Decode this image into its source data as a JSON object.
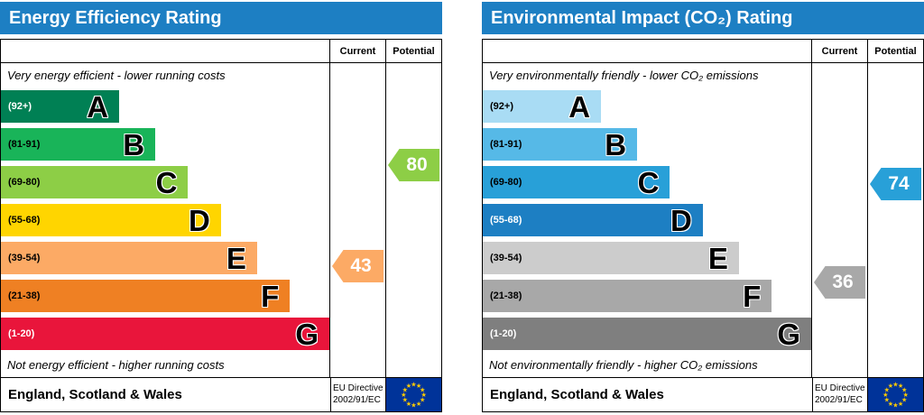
{
  "colors": {
    "header_bg": "#1d7fc3",
    "header_text": "#ffffff",
    "flag_bg": "#003399",
    "flag_star": "#ffcc00"
  },
  "chart_data": [
    {
      "type": "bar",
      "variant": "epc-rating",
      "title": "Energy Efficiency Rating",
      "columns": {
        "current": "Current",
        "potential": "Potential"
      },
      "top_caption": "Very energy efficient - lower running costs",
      "bottom_caption": "Not energy efficient - higher running costs",
      "bands": [
        {
          "letter": "A",
          "range": "(92+)",
          "lo": 92,
          "hi": 100,
          "color": "#008054",
          "range_color": "#ffffff",
          "width_pct": 36
        },
        {
          "letter": "B",
          "range": "(81-91)",
          "lo": 81,
          "hi": 91,
          "color": "#19b459",
          "range_color": "#000000",
          "width_pct": 47
        },
        {
          "letter": "C",
          "range": "(69-80)",
          "lo": 69,
          "hi": 80,
          "color": "#8dce46",
          "range_color": "#000000",
          "width_pct": 57
        },
        {
          "letter": "D",
          "range": "(55-68)",
          "lo": 55,
          "hi": 68,
          "color": "#ffd500",
          "range_color": "#000000",
          "width_pct": 67
        },
        {
          "letter": "E",
          "range": "(39-54)",
          "lo": 39,
          "hi": 54,
          "color": "#fcaa65",
          "range_color": "#000000",
          "width_pct": 78
        },
        {
          "letter": "F",
          "range": "(21-38)",
          "lo": 21,
          "hi": 38,
          "color": "#ef8023",
          "range_color": "#000000",
          "width_pct": 88
        },
        {
          "letter": "G",
          "range": "(1-20)",
          "lo": 1,
          "hi": 20,
          "color": "#e9153b",
          "range_color": "#ffffff",
          "width_pct": 100
        }
      ],
      "current": {
        "value": 43,
        "band": "E",
        "color": "#fcaa65"
      },
      "potential": {
        "value": 80,
        "band": "C",
        "color": "#8dce46"
      },
      "footer": {
        "region": "England, Scotland & Wales",
        "directive_line1": "EU Directive",
        "directive_line2": "2002/91/EC"
      }
    },
    {
      "type": "bar",
      "variant": "epc-rating",
      "title": "Environmental Impact (CO₂) Rating",
      "columns": {
        "current": "Current",
        "potential": "Potential"
      },
      "top_caption": "Very environmentally friendly - lower CO₂ emissions",
      "bottom_caption": "Not environmentally friendly - higher CO₂ emissions",
      "bands": [
        {
          "letter": "A",
          "range": "(92+)",
          "lo": 92,
          "hi": 100,
          "color": "#a9dcf4",
          "range_color": "#000000",
          "width_pct": 36
        },
        {
          "letter": "B",
          "range": "(81-91)",
          "lo": 81,
          "hi": 91,
          "color": "#56b9e7",
          "range_color": "#000000",
          "width_pct": 47
        },
        {
          "letter": "C",
          "range": "(69-80)",
          "lo": 69,
          "hi": 80,
          "color": "#28a0d8",
          "range_color": "#000000",
          "width_pct": 57
        },
        {
          "letter": "D",
          "range": "(55-68)",
          "lo": 55,
          "hi": 68,
          "color": "#1d7fc3",
          "range_color": "#ffffff",
          "width_pct": 67
        },
        {
          "letter": "E",
          "range": "(39-54)",
          "lo": 39,
          "hi": 54,
          "color": "#cccccc",
          "range_color": "#000000",
          "width_pct": 78
        },
        {
          "letter": "F",
          "range": "(21-38)",
          "lo": 21,
          "hi": 38,
          "color": "#a8a8a8",
          "range_color": "#000000",
          "width_pct": 88
        },
        {
          "letter": "G",
          "range": "(1-20)",
          "lo": 1,
          "hi": 20,
          "color": "#7f7f7f",
          "range_color": "#ffffff",
          "width_pct": 100
        }
      ],
      "current": {
        "value": 36,
        "band": "F",
        "color": "#a8a8a8"
      },
      "potential": {
        "value": 74,
        "band": "C",
        "color": "#28a0d8"
      },
      "footer": {
        "region": "England, Scotland & Wales",
        "directive_line1": "EU Directive",
        "directive_line2": "2002/91/EC"
      }
    }
  ]
}
